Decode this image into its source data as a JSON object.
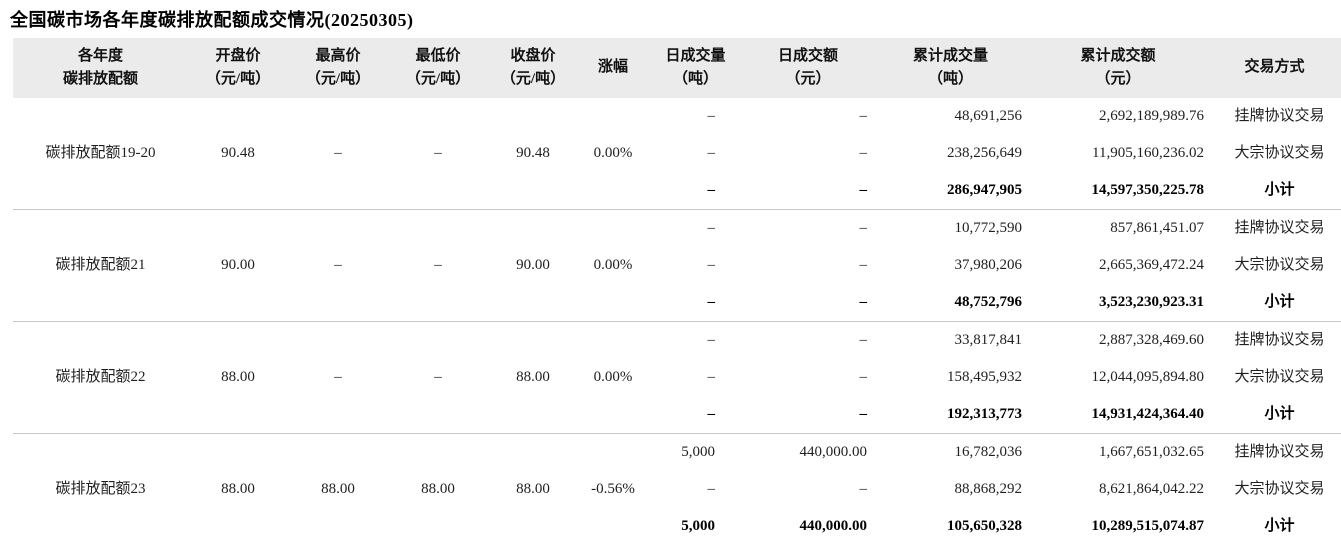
{
  "page_title": "全国碳市场各年度碳排放配额成交情况(20250305)",
  "table": {
    "columns": [
      {
        "key": "name",
        "label": "各年度\n碳排放配额"
      },
      {
        "key": "open",
        "label": "开盘价\n（元/吨）"
      },
      {
        "key": "high",
        "label": "最高价\n（元/吨）"
      },
      {
        "key": "low",
        "label": "最低价\n（元/吨）"
      },
      {
        "key": "close",
        "label": "收盘价\n（元/吨）"
      },
      {
        "key": "change",
        "label": "涨幅"
      },
      {
        "key": "daily_volume",
        "label": "日成交量\n（吨）"
      },
      {
        "key": "daily_amount",
        "label": "日成交额\n（元）"
      },
      {
        "key": "cum_volume",
        "label": "累计成交量\n（吨）"
      },
      {
        "key": "cum_amount",
        "label": "累计成交额\n（元）"
      },
      {
        "key": "method",
        "label": "交易方式"
      }
    ],
    "blocks": [
      {
        "name": "碳排放配额19-20",
        "open": "90.48",
        "high": "–",
        "low": "–",
        "close": "90.48",
        "change": "0.00%",
        "rows": [
          {
            "daily_volume": "–",
            "daily_amount": "–",
            "cum_volume": "48,691,256",
            "cum_amount": "2,692,189,989.76",
            "method": "挂牌协议交易"
          },
          {
            "daily_volume": "–",
            "daily_amount": "–",
            "cum_volume": "238,256,649",
            "cum_amount": "11,905,160,236.02",
            "method": "大宗协议交易"
          },
          {
            "daily_volume": "–",
            "daily_amount": "–",
            "cum_volume": "286,947,905",
            "cum_amount": "14,597,350,225.78",
            "method": "小计"
          }
        ]
      },
      {
        "name": "碳排放配额21",
        "open": "90.00",
        "high": "–",
        "low": "–",
        "close": "90.00",
        "change": "0.00%",
        "rows": [
          {
            "daily_volume": "–",
            "daily_amount": "–",
            "cum_volume": "10,772,590",
            "cum_amount": "857,861,451.07",
            "method": "挂牌协议交易"
          },
          {
            "daily_volume": "–",
            "daily_amount": "–",
            "cum_volume": "37,980,206",
            "cum_amount": "2,665,369,472.24",
            "method": "大宗协议交易"
          },
          {
            "daily_volume": "–",
            "daily_amount": "–",
            "cum_volume": "48,752,796",
            "cum_amount": "3,523,230,923.31",
            "method": "小计"
          }
        ]
      },
      {
        "name": "碳排放配额22",
        "open": "88.00",
        "high": "–",
        "low": "–",
        "close": "88.00",
        "change": "0.00%",
        "rows": [
          {
            "daily_volume": "–",
            "daily_amount": "–",
            "cum_volume": "33,817,841",
            "cum_amount": "2,887,328,469.60",
            "method": "挂牌协议交易"
          },
          {
            "daily_volume": "–",
            "daily_amount": "–",
            "cum_volume": "158,495,932",
            "cum_amount": "12,044,095,894.80",
            "method": "大宗协议交易"
          },
          {
            "daily_volume": "–",
            "daily_amount": "–",
            "cum_volume": "192,313,773",
            "cum_amount": "14,931,424,364.40",
            "method": "小计"
          }
        ]
      },
      {
        "name": "碳排放配额23",
        "open": "88.00",
        "high": "88.00",
        "low": "88.00",
        "close": "88.00",
        "change": "-0.56%",
        "rows": [
          {
            "daily_volume": "5,000",
            "daily_amount": "440,000.00",
            "cum_volume": "16,782,036",
            "cum_amount": "1,667,651,032.65",
            "method": "挂牌协议交易"
          },
          {
            "daily_volume": "–",
            "daily_amount": "–",
            "cum_volume": "88,868,292",
            "cum_amount": "8,621,864,042.22",
            "method": "大宗协议交易"
          },
          {
            "daily_volume": "5,000",
            "daily_amount": "440,000.00",
            "cum_volume": "105,650,328",
            "cum_amount": "10,289,515,074.87",
            "method": "小计"
          }
        ]
      }
    ]
  },
  "chart_data": {
    "type": "table",
    "title": "全国碳市场各年度碳排放配额成交情况(20250305)",
    "columns": [
      "各年度碳排放配额",
      "开盘价（元/吨）",
      "最高价（元/吨）",
      "最低价（元/吨）",
      "收盘价（元/吨）",
      "涨幅",
      "日成交量（吨）",
      "日成交额（元）",
      "累计成交量（吨）",
      "累计成交额（元）",
      "交易方式"
    ],
    "rows": [
      [
        "碳排放配额19-20",
        "90.48",
        "–",
        "–",
        "90.48",
        "0.00%",
        "–",
        "–",
        "48,691,256",
        "2,692,189,989.76",
        "挂牌协议交易"
      ],
      [
        "碳排放配额19-20",
        "90.48",
        "–",
        "–",
        "90.48",
        "0.00%",
        "–",
        "–",
        "238,256,649",
        "11,905,160,236.02",
        "大宗协议交易"
      ],
      [
        "碳排放配额19-20",
        "90.48",
        "–",
        "–",
        "90.48",
        "0.00%",
        "–",
        "–",
        "286,947,905",
        "14,597,350,225.78",
        "小计"
      ],
      [
        "碳排放配额21",
        "90.00",
        "–",
        "–",
        "90.00",
        "0.00%",
        "–",
        "–",
        "10,772,590",
        "857,861,451.07",
        "挂牌协议交易"
      ],
      [
        "碳排放配额21",
        "90.00",
        "–",
        "–",
        "90.00",
        "0.00%",
        "–",
        "–",
        "37,980,206",
        "2,665,369,472.24",
        "大宗协议交易"
      ],
      [
        "碳排放配额21",
        "90.00",
        "–",
        "–",
        "90.00",
        "0.00%",
        "–",
        "–",
        "48,752,796",
        "3,523,230,923.31",
        "小计"
      ],
      [
        "碳排放配额22",
        "88.00",
        "–",
        "–",
        "88.00",
        "0.00%",
        "–",
        "–",
        "33,817,841",
        "2,887,328,469.60",
        "挂牌协议交易"
      ],
      [
        "碳排放配额22",
        "88.00",
        "–",
        "–",
        "88.00",
        "0.00%",
        "–",
        "–",
        "158,495,932",
        "12,044,095,894.80",
        "大宗协议交易"
      ],
      [
        "碳排放配额22",
        "88.00",
        "–",
        "–",
        "88.00",
        "0.00%",
        "–",
        "–",
        "192,313,773",
        "14,931,424,364.40",
        "小计"
      ],
      [
        "碳排放配额23",
        "88.00",
        "88.00",
        "88.00",
        "88.00",
        "-0.56%",
        "5,000",
        "440,000.00",
        "16,782,036",
        "1,667,651,032.65",
        "挂牌协议交易"
      ],
      [
        "碳排放配额23",
        "88.00",
        "88.00",
        "88.00",
        "88.00",
        "-0.56%",
        "–",
        "–",
        "88,868,292",
        "8,621,864,042.22",
        "大宗协议交易"
      ],
      [
        "碳排放配额23",
        "88.00",
        "88.00",
        "88.00",
        "88.00",
        "-0.56%",
        "5,000",
        "440,000.00",
        "105,650,328",
        "10,289,515,074.87",
        "小计"
      ]
    ]
  }
}
